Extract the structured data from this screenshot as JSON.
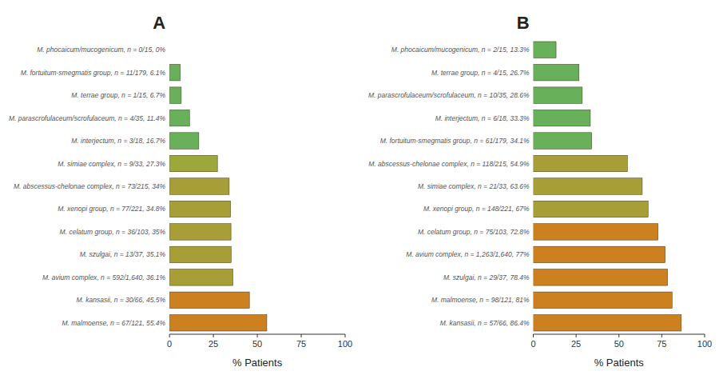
{
  "chart_data": [
    {
      "type": "bar",
      "orientation": "horizontal",
      "title": "A",
      "categories": [
        "M. phocaicum/mucogenicum, n = 0/15, 0%",
        "M. fortuitum-smegmatis group, n = 11/179, 6.1%",
        "M. terrae group, n = 1/15, 6.7%",
        "M. parascrofulaceum/scrofulaceum, n = 4/35, 11.4%",
        "M. interjectum, n = 3/18, 16.7%",
        "M. simiae complex, n = 9/33, 27.3%",
        "M. abscessus-chelonae complex, n = 73/215, 34%",
        "M. xenopi group, n = 77/221, 34.8%",
        "M. celatum group, n = 36/103, 35%",
        "M. szulgai, n = 13/37, 35.1%",
        "M. avium complex, n = 592/1,640, 36.1%",
        "M. kansasii, n = 30/66, 45.5%",
        "M. malmoense, n = 67/121, 55.4%"
      ],
      "values": [
        0.0,
        6.1,
        6.7,
        11.4,
        16.7,
        27.3,
        34.0,
        34.8,
        35.0,
        35.1,
        36.1,
        45.5,
        55.4
      ],
      "colors": [
        "#68b05a",
        "#68b05a",
        "#68b05a",
        "#68b05a",
        "#68b05a",
        "#9da83a",
        "#a89e38",
        "#a89e38",
        "#a89e38",
        "#a89e38",
        "#a89e38",
        "#cc8020",
        "#cc8020"
      ],
      "xlabel": "% Patients",
      "xlim": [
        0,
        100
      ],
      "xticks": [
        0,
        25,
        50,
        75,
        100
      ],
      "grid": false
    },
    {
      "type": "bar",
      "orientation": "horizontal",
      "title": "B",
      "categories": [
        "M. phocaicum/mucogenicum, n = 2/15, 13.3%",
        "M. terrae group, n = 4/15, 26.7%",
        "M. parascrofulaceum/scrofulaceum, n = 10/35, 28.6%",
        "M. interjectum, n = 6/18, 33.3%",
        "M. fortuitum-smegmatis group, n = 61/179, 34.1%",
        "M. abscessus-chelonae complex, n = 118/215, 54.9%",
        "M. simiae complex, n = 21/33, 63.6%",
        "M. xenopi group, n = 148/221, 67%",
        "M. celatum group, n = 75/103, 72.8%",
        "M. avium complex, n = 1,263/1,640, 77%",
        "M. szulgai, n = 29/37, 78.4%",
        "M. malmoense, n = 98/121, 81%",
        "M. kansasii, n = 57/66, 86.4%"
      ],
      "values": [
        13.3,
        26.7,
        28.6,
        33.3,
        34.1,
        54.9,
        63.6,
        67.0,
        72.8,
        77.0,
        78.4,
        81.0,
        86.4
      ],
      "colors": [
        "#68b05a",
        "#68b05a",
        "#68b05a",
        "#68b05a",
        "#68b05a",
        "#a89e38",
        "#a89e38",
        "#a89e38",
        "#cc8020",
        "#cc8020",
        "#cc8020",
        "#cc8020",
        "#cc8020"
      ],
      "xlabel": "% Patients",
      "xlim": [
        0,
        100
      ],
      "xticks": [
        0,
        25,
        50,
        75,
        100
      ],
      "grid": false
    }
  ]
}
